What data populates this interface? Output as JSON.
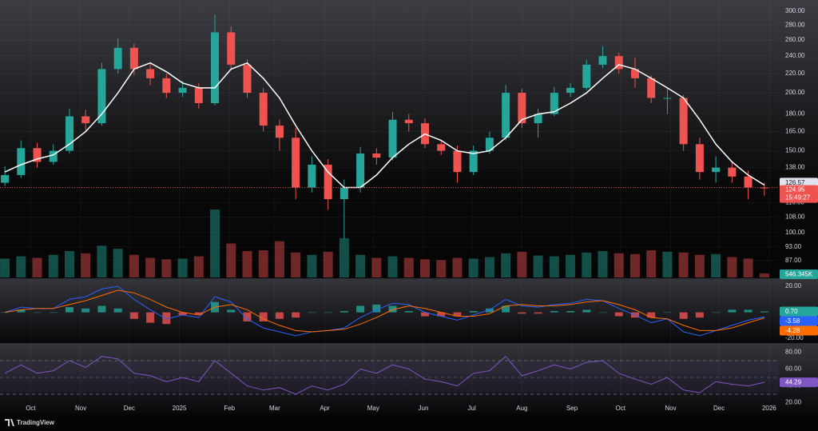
{
  "chart_data": [
    {
      "type": "candlestick",
      "x": [
        0,
        10,
        20,
        30,
        40,
        50,
        60,
        70,
        80,
        90,
        100,
        110,
        120,
        130,
        140,
        150,
        160,
        170,
        180,
        190,
        200,
        210,
        220,
        230,
        240,
        250,
        260,
        270,
        280,
        290,
        300,
        310,
        320,
        330,
        340,
        350,
        360,
        370,
        380,
        390,
        400,
        410,
        420,
        430,
        440,
        450,
        460,
        470
      ],
      "open": [
        128,
        133,
        152,
        142,
        150,
        178,
        172,
        225,
        250,
        225,
        215,
        200,
        205,
        190,
        270,
        230,
        200,
        170,
        160,
        125,
        140,
        118,
        125,
        148,
        145,
        175,
        172,
        155,
        150,
        135,
        150,
        160,
        200,
        172,
        180,
        200,
        205,
        230,
        240,
        225,
        215,
        195,
        195,
        155,
        135,
        138,
        132,
        125
      ],
      "high": [
        139,
        158,
        156,
        155,
        185,
        184,
        232,
        262,
        255,
        232,
        220,
        212,
        210,
        295,
        278,
        236,
        205,
        175,
        168,
        146,
        144,
        130,
        153,
        152,
        182,
        180,
        176,
        158,
        154,
        154,
        165,
        208,
        204,
        185,
        206,
        210,
        236,
        252,
        244,
        238,
        218,
        205,
        198,
        160,
        146,
        142,
        136,
        128
      ],
      "low": [
        126,
        131,
        138,
        140,
        148,
        165,
        170,
        220,
        218,
        208,
        195,
        196,
        185,
        188,
        225,
        195,
        165,
        150,
        118,
        122,
        112,
        97,
        122,
        140,
        143,
        165,
        152,
        147,
        128,
        133,
        148,
        158,
        168,
        160,
        178,
        196,
        203,
        226,
        220,
        205,
        190,
        180,
        150,
        130,
        128,
        128,
        118,
        120
      ],
      "close": [
        133,
        152,
        142,
        150,
        178,
        172,
        225,
        250,
        225,
        215,
        200,
        205,
        190,
        270,
        230,
        200,
        170,
        160,
        125,
        140,
        118,
        125,
        148,
        145,
        175,
        172,
        155,
        150,
        135,
        150,
        160,
        200,
        172,
        180,
        200,
        205,
        230,
        240,
        225,
        215,
        195,
        195,
        155,
        135,
        138,
        132,
        125,
        124.95
      ],
      "up_color": "#26a69a",
      "down_color": "#ef5350",
      "ma": {
        "color": "#ffffff",
        "values": [
          135,
          140,
          144,
          147,
          155,
          165,
          180,
          200,
          225,
          232,
          222,
          210,
          205,
          205,
          225,
          232,
          215,
          195,
          170,
          150,
          135,
          125,
          125,
          133,
          145,
          155,
          163,
          158,
          150,
          148,
          150,
          160,
          175,
          180,
          182,
          190,
          200,
          215,
          230,
          225,
          215,
          205,
          195,
          175,
          155,
          142,
          133,
          126.57
        ]
      },
      "volume": {
        "values": [
          2500,
          2800,
          2600,
          3000,
          3500,
          3200,
          4200,
          3800,
          3000,
          2600,
          2400,
          2500,
          2800,
          9000,
          4500,
          3500,
          3600,
          4800,
          3300,
          3000,
          3400,
          5200,
          3000,
          2600,
          2800,
          2600,
          2400,
          2300,
          2600,
          2500,
          2700,
          3200,
          3400,
          2900,
          2800,
          3000,
          3300,
          3500,
          3200,
          3100,
          3600,
          3400,
          3300,
          3000,
          3100,
          2700,
          2500,
          546.345
        ],
        "label": "546.345K"
      },
      "countdown": "15:49:27",
      "log": true,
      "grid": true,
      "ylim": [
        80,
        317
      ],
      "yticks": [
        {
          "value": 300,
          "label": "300.00"
        },
        {
          "value": 280,
          "label": "280.00"
        },
        {
          "value": 260,
          "label": "260.00"
        },
        {
          "value": 240,
          "label": "240.00"
        },
        {
          "value": 220,
          "label": "220.00"
        },
        {
          "value": 200,
          "label": "200.00"
        },
        {
          "value": 180,
          "label": "180.00"
        },
        {
          "value": 165,
          "label": "165.00"
        },
        {
          "value": 150,
          "label": "150.00"
        },
        {
          "value": 138,
          "label": "138.00"
        },
        {
          "value": 116,
          "label": "116.00"
        },
        {
          "value": 108,
          "label": "108.00"
        },
        {
          "value": 100,
          "label": "100.00"
        },
        {
          "value": 93,
          "label": "93.00"
        },
        {
          "value": 87,
          "label": "87.00"
        }
      ],
      "xlim": [
        -3,
        479
      ],
      "xticks": [
        {
          "value": 16,
          "label": "Oct"
        },
        {
          "value": 47,
          "label": "Nov"
        },
        {
          "value": 77,
          "label": "Dec"
        },
        {
          "value": 108,
          "label": "2025"
        },
        {
          "value": 139,
          "label": "Feb"
        },
        {
          "value": 167,
          "label": "Mar"
        },
        {
          "value": 198,
          "label": "Apr"
        },
        {
          "value": 228,
          "label": "May"
        },
        {
          "value": 259,
          "label": "Jun"
        },
        {
          "value": 289,
          "label": "Jul"
        },
        {
          "value": 320,
          "label": "Aug"
        },
        {
          "value": 351,
          "label": "Sep"
        },
        {
          "value": 381,
          "label": "Oct"
        },
        {
          "value": 412,
          "label": "Nov"
        },
        {
          "value": 442,
          "label": "Dec"
        },
        {
          "value": 473,
          "label": "2026"
        }
      ]
    },
    {
      "type": "macd",
      "macd": {
        "color": "#2962ff",
        "values": [
          0,
          4,
          3,
          3,
          10,
          12,
          18,
          20,
          10,
          2,
          -5,
          -2,
          -4,
          12,
          8,
          -5,
          -12,
          -15,
          -18,
          -15,
          -14,
          -12,
          -4,
          2,
          7,
          6,
          0,
          -3,
          -6,
          -2,
          2,
          10,
          5,
          4,
          6,
          7,
          10,
          9,
          3,
          -2,
          -8,
          -5,
          -15,
          -18,
          -14,
          -10,
          -6,
          -3.58
        ]
      },
      "signal": {
        "color": "#ff6d00",
        "values": [
          0,
          2,
          3,
          3,
          6,
          9,
          13,
          17,
          15,
          10,
          4,
          0,
          -2,
          4,
          6,
          2,
          -5,
          -10,
          -14,
          -15,
          -14,
          -13,
          -9,
          -4,
          2,
          5,
          3,
          0,
          -3,
          -3,
          -1,
          5,
          6,
          5,
          5,
          6,
          8,
          9,
          6,
          2,
          -4,
          -5,
          -10,
          -14,
          -14,
          -12,
          -8,
          -4.28
        ]
      },
      "histogram": {
        "up_color": "#26a69a",
        "down_color": "#ef5350",
        "values": [
          0,
          2,
          0,
          0,
          4,
          3,
          5,
          3,
          -5,
          -8,
          -9,
          -2,
          -2,
          8,
          2,
          -7,
          -7,
          -5,
          -4,
          0,
          0,
          1,
          5,
          6,
          5,
          1,
          -3,
          -3,
          -3,
          1,
          3,
          5,
          -1,
          -1,
          1,
          1,
          2,
          0,
          -3,
          -4,
          -4,
          0,
          -5,
          -4,
          0,
          2,
          2,
          0.7
        ],
        "last_label": "0.70"
      },
      "ylim": [
        -23,
        25
      ],
      "yticks": [
        {
          "value": 20,
          "label": "20.00"
        },
        {
          "value": -20,
          "label": "-20.00"
        }
      ]
    },
    {
      "type": "rsi",
      "color": "#7e57c2",
      "values": [
        55,
        65,
        55,
        58,
        70,
        62,
        75,
        72,
        55,
        52,
        45,
        50,
        45,
        70,
        55,
        40,
        35,
        38,
        30,
        40,
        35,
        42,
        60,
        55,
        65,
        60,
        48,
        45,
        40,
        55,
        58,
        75,
        52,
        58,
        65,
        60,
        68,
        70,
        55,
        48,
        42,
        50,
        35,
        32,
        45,
        42,
        40,
        44.29
      ],
      "levels": [
        30,
        50,
        70
      ],
      "ylim": [
        13,
        89
      ],
      "yticks": [
        {
          "value": 80,
          "label": "80.00"
        },
        {
          "value": 60,
          "label": "60.00"
        },
        {
          "value": 40,
          "label": "40.00"
        },
        {
          "value": 20,
          "label": "20.00"
        }
      ]
    }
  ],
  "footer": {
    "brand": "TradingView"
  }
}
